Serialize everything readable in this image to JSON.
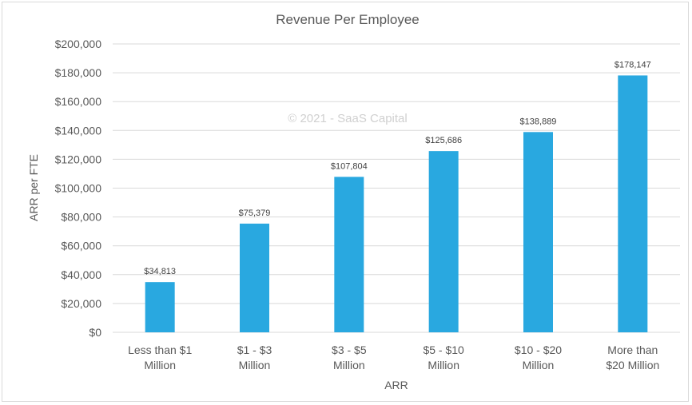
{
  "chart_data": {
    "type": "bar",
    "title": "Revenue Per Employee",
    "xlabel": "ARR",
    "ylabel": "ARR per FTE",
    "watermark": "© 2021 - SaaS Capital",
    "categories": [
      [
        "Less than $1",
        "Million"
      ],
      [
        "$1 - $3",
        "Million"
      ],
      [
        "$3 - $5",
        "Million"
      ],
      [
        "$5 - $10",
        "Million"
      ],
      [
        "$10 - $20",
        "Million"
      ],
      [
        "More than",
        "$20 Million"
      ]
    ],
    "values": [
      34813,
      75379,
      107804,
      125686,
      138889,
      178147
    ],
    "data_labels": [
      "$34,813",
      "$75,379",
      "$107,804",
      "$125,686",
      "$138,889",
      "$178,147"
    ],
    "ylim": [
      0,
      200000
    ],
    "yticks": [
      0,
      20000,
      40000,
      60000,
      80000,
      100000,
      120000,
      140000,
      160000,
      180000,
      200000
    ],
    "ytick_labels": [
      "$0",
      "$20,000",
      "$40,000",
      "$60,000",
      "$80,000",
      "$100,000",
      "$120,000",
      "$140,000",
      "$160,000",
      "$180,000",
      "$200,000"
    ],
    "grid": true,
    "legend": "none",
    "bar_color": "#29a8e0"
  }
}
